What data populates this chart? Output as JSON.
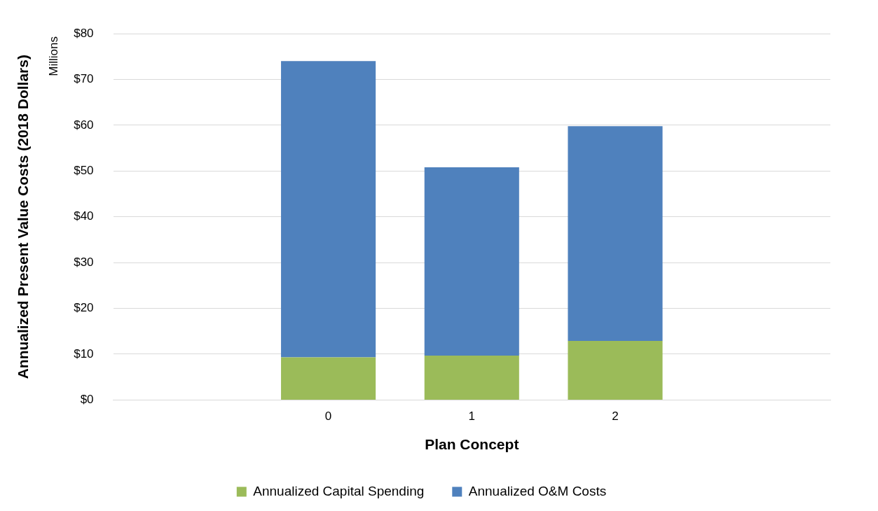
{
  "chart_data": {
    "type": "bar",
    "stacked": true,
    "xlabel": "Plan Concept",
    "ylabel": "Annualized Present Value Costs (2018 Dollars)",
    "annotations": [
      "Millions"
    ],
    "categories": [
      null,
      "0",
      "1",
      "2",
      null
    ],
    "series": [
      {
        "name": "Annualized Capital Spending",
        "color": "#9bbb59",
        "values": [
          null,
          9.3,
          9.7,
          12.9,
          null
        ]
      },
      {
        "name": "Annualized O&M Costs",
        "color": "#4f81bd",
        "values": [
          null,
          64.7,
          41.1,
          46.9,
          null
        ]
      }
    ],
    "ylim": [
      0,
      80
    ],
    "yticks": [
      {
        "value": 0,
        "label": "$0"
      },
      {
        "value": 10,
        "label": "$10"
      },
      {
        "value": 20,
        "label": "$20"
      },
      {
        "value": 30,
        "label": "$30"
      },
      {
        "value": 40,
        "label": "$40"
      },
      {
        "value": 50,
        "label": "$50"
      },
      {
        "value": 60,
        "label": "$60"
      },
      {
        "value": 70,
        "label": "$70"
      },
      {
        "value": 80,
        "label": "$80"
      }
    ],
    "grid": "y",
    "legend": "bottom"
  }
}
